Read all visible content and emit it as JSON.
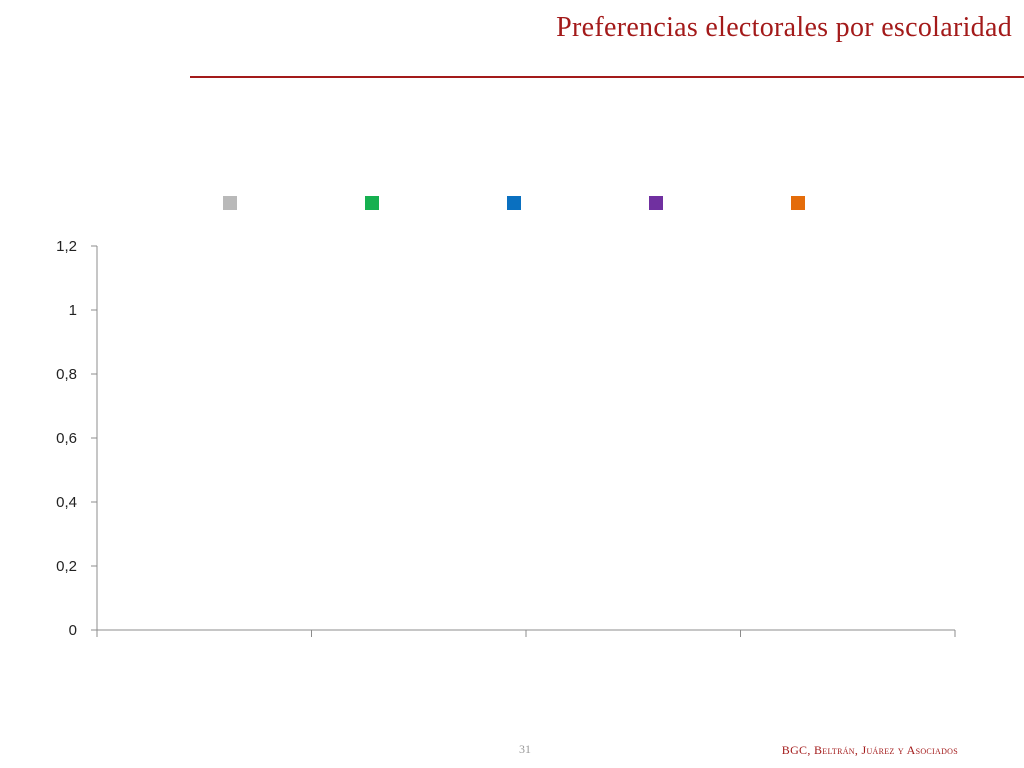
{
  "slide": {
    "title": "Preferencias electorales por escolaridad",
    "page_number": "31",
    "footer_brand": "BGC, Beltrán, Juárez y Asociados"
  },
  "chart_data": {
    "type": "bar",
    "title": "",
    "xlabel": "",
    "ylabel": "",
    "ylim": [
      0,
      1.2
    ],
    "y_ticks": [
      "0",
      "0,2",
      "0,4",
      "0,6",
      "0,8",
      "1",
      "1,2"
    ],
    "y_tick_values": [
      0,
      0.2,
      0.4,
      0.6,
      0.8,
      1,
      1.2
    ],
    "category_count": 4,
    "categories": [],
    "legend_position": "top",
    "grid": false,
    "series": [
      {
        "color": "#b9b9b9",
        "values": []
      },
      {
        "color": "#16b050",
        "values": []
      },
      {
        "color": "#0a70c0",
        "values": []
      },
      {
        "color": "#7030a0",
        "values": []
      },
      {
        "color": "#e46c0a",
        "values": []
      }
    ]
  }
}
